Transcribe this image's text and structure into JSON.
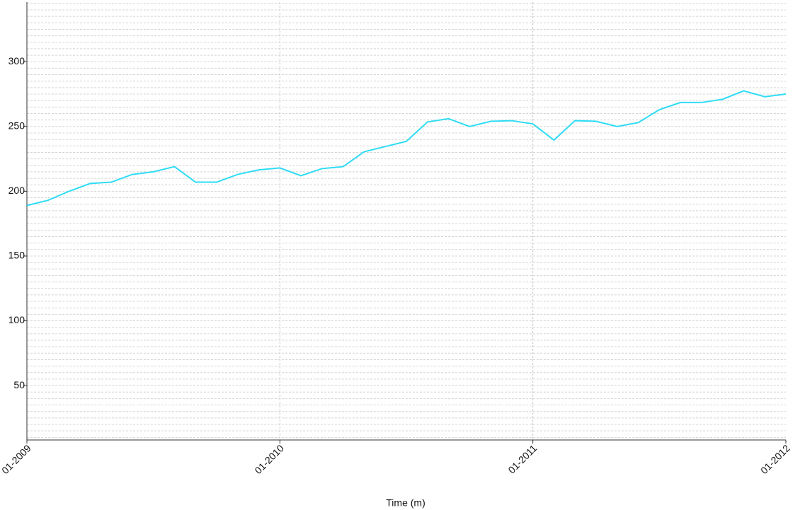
{
  "chart_data": {
    "type": "line",
    "x_label": "Time (m)",
    "x": [
      "01-2009",
      "02-2009",
      "03-2009",
      "04-2009",
      "05-2009",
      "06-2009",
      "07-2009",
      "08-2009",
      "09-2009",
      "10-2009",
      "11-2009",
      "12-2009",
      "01-2010",
      "02-2010",
      "03-2010",
      "04-2010",
      "05-2010",
      "06-2010",
      "07-2010",
      "08-2010",
      "09-2010",
      "10-2010",
      "11-2010",
      "12-2010",
      "01-2011",
      "02-2011",
      "03-2011",
      "04-2011",
      "05-2011",
      "06-2011",
      "07-2011",
      "08-2011",
      "09-2011",
      "10-2011",
      "11-2011",
      "12-2011",
      "01-2012"
    ],
    "series": [
      {
        "color": "#2fdcf5",
        "values": [
          189,
          193,
          200,
          206,
          207,
          213,
          215,
          219,
          207,
          207,
          213,
          216.5,
          218,
          212,
          217.5,
          219,
          230.5,
          234.5,
          238.5,
          253.5,
          256,
          250,
          254,
          254.5,
          252,
          239.5,
          254.5,
          254,
          250,
          253,
          263,
          268.5,
          268.5,
          271,
          277.5,
          273,
          275
        ]
      }
    ],
    "xticks": [
      "01-2009",
      "01-2010",
      "01-2011",
      "01-2012"
    ],
    "ylim": [
      8,
      346
    ],
    "yticks": [
      50,
      100,
      150,
      200,
      250,
      300
    ],
    "grid": true
  }
}
